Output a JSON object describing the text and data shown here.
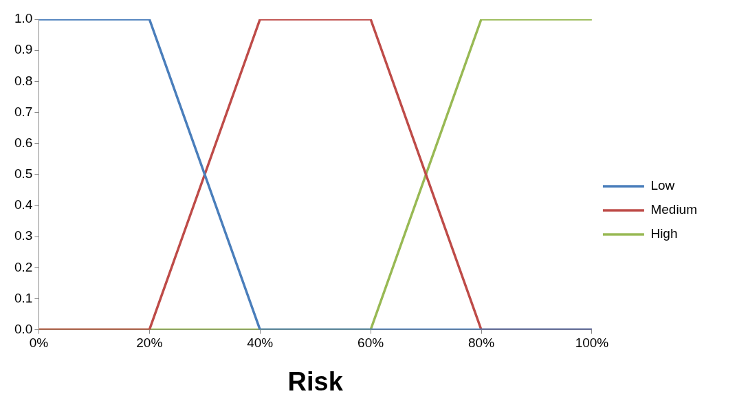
{
  "chart_data": {
    "type": "line",
    "xlabel": "Risk",
    "x": [
      0,
      20,
      40,
      60,
      80,
      100
    ],
    "series": [
      {
        "name": "Low",
        "color": "#4a7ebb",
        "values": [
          1,
          1,
          0,
          0,
          0,
          0
        ]
      },
      {
        "name": "Medium",
        "color": "#be4b48",
        "values": [
          0,
          0,
          1,
          1,
          0,
          0
        ]
      },
      {
        "name": "High",
        "color": "#98b954",
        "values": [
          0,
          0,
          0,
          0,
          1,
          1
        ]
      }
    ],
    "xlim": [
      0,
      100
    ],
    "xticks": [
      {
        "value": 0,
        "label": "0%"
      },
      {
        "value": 20,
        "label": "20%"
      },
      {
        "value": 40,
        "label": "40%"
      },
      {
        "value": 60,
        "label": "60%"
      },
      {
        "value": 80,
        "label": "80%"
      },
      {
        "value": 100,
        "label": "100%"
      }
    ],
    "ylim": [
      0,
      1
    ],
    "yticks": [
      {
        "value": 0,
        "label": "0.0"
      },
      {
        "value": 0.1,
        "label": "0.1"
      },
      {
        "value": 0.2,
        "label": "0.2"
      },
      {
        "value": 0.3,
        "label": "0.3"
      },
      {
        "value": 0.4,
        "label": "0.4"
      },
      {
        "value": 0.5,
        "label": "0.5"
      },
      {
        "value": 0.6,
        "label": "0.6"
      },
      {
        "value": 0.7,
        "label": "0.7"
      },
      {
        "value": 0.8,
        "label": "0.8"
      },
      {
        "value": 0.9,
        "label": "0.9"
      },
      {
        "value": 1,
        "label": "1.0"
      }
    ],
    "grid": false,
    "legend": "right",
    "marker": "none",
    "line_style": "solid"
  }
}
